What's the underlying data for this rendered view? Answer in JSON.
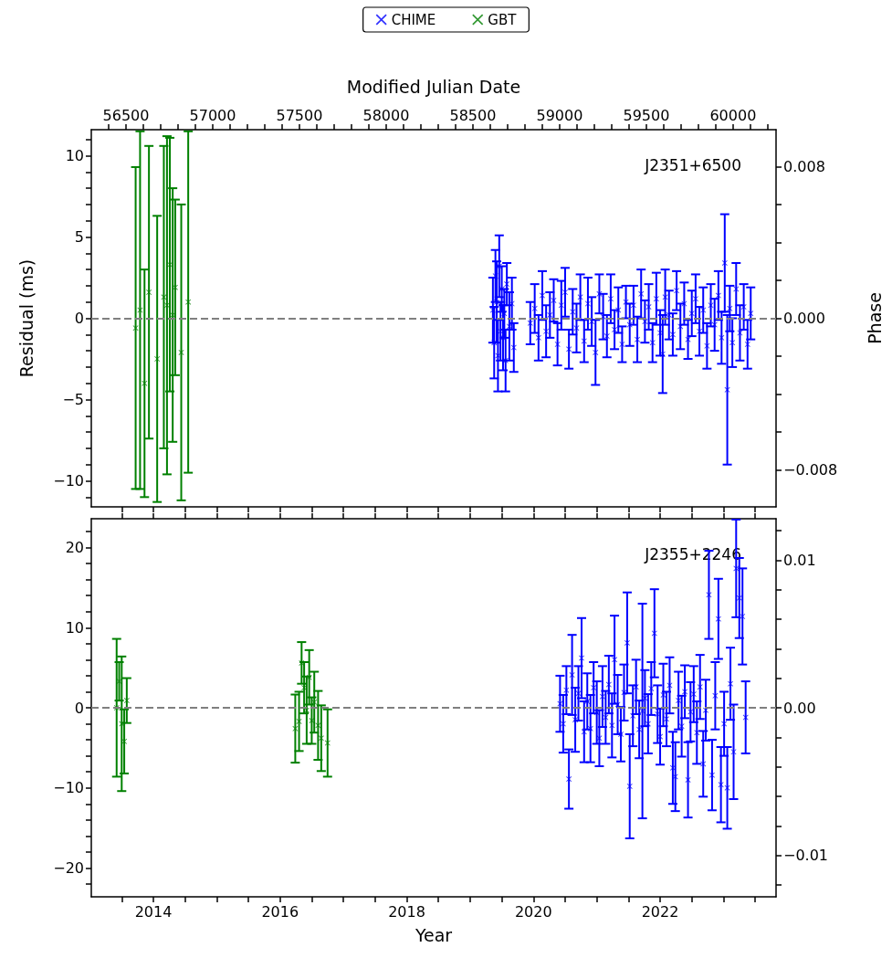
{
  "chart_data": [
    {
      "type": "scatter",
      "x2label": "Modified Julian Date",
      "ylabel": "Residual (ms)",
      "y2label": "Phase",
      "annotations": [
        "J2351+6500"
      ],
      "legend": "top",
      "marker": "cross",
      "tick_labels": "y",
      "xlim": [
        2013.02,
        2023.83
      ],
      "xticks": [
        {
          "value": 2013.5,
          "label": null
        },
        {
          "value": 2014,
          "label": null
        },
        {
          "value": 2014.5,
          "label": null
        },
        {
          "value": 2015,
          "label": null
        },
        {
          "value": 2015.5,
          "label": null
        },
        {
          "value": 2016,
          "label": null
        },
        {
          "value": 2016.5,
          "label": null
        },
        {
          "value": 2017,
          "label": null
        },
        {
          "value": 2017.5,
          "label": null
        },
        {
          "value": 2018,
          "label": null
        },
        {
          "value": 2018.5,
          "label": null
        },
        {
          "value": 2019,
          "label": null
        },
        {
          "value": 2019.5,
          "label": null
        },
        {
          "value": 2020,
          "label": null
        },
        {
          "value": 2020.5,
          "label": null
        },
        {
          "value": 2021,
          "label": null
        },
        {
          "value": 2021.5,
          "label": null
        },
        {
          "value": 2022,
          "label": null
        },
        {
          "value": 2022.5,
          "label": null
        },
        {
          "value": 2023,
          "label": null
        },
        {
          "value": 2023.5,
          "label": null
        }
      ],
      "x2lim": [
        56300,
        60248
      ],
      "x2ticks": [
        {
          "value": 56400,
          "label": null
        },
        56500,
        {
          "value": 56600,
          "label": null
        },
        {
          "value": 56700,
          "label": null
        },
        {
          "value": 56800,
          "label": null
        },
        {
          "value": 56900,
          "label": null
        },
        57000,
        {
          "value": 57100,
          "label": null
        },
        {
          "value": 57200,
          "label": null
        },
        {
          "value": 57300,
          "label": null
        },
        {
          "value": 57400,
          "label": null
        },
        57500,
        {
          "value": 57600,
          "label": null
        },
        {
          "value": 57700,
          "label": null
        },
        {
          "value": 57800,
          "label": null
        },
        {
          "value": 57900,
          "label": null
        },
        58000,
        {
          "value": 58100,
          "label": null
        },
        {
          "value": 58200,
          "label": null
        },
        {
          "value": 58300,
          "label": null
        },
        {
          "value": 58400,
          "label": null
        },
        58500,
        {
          "value": 58600,
          "label": null
        },
        {
          "value": 58700,
          "label": null
        },
        {
          "value": 58800,
          "label": null
        },
        {
          "value": 58900,
          "label": null
        },
        59000,
        {
          "value": 59100,
          "label": null
        },
        {
          "value": 59200,
          "label": null
        },
        {
          "value": 59300,
          "label": null
        },
        {
          "value": 59400,
          "label": null
        },
        59500,
        {
          "value": 59600,
          "label": null
        },
        {
          "value": 59700,
          "label": null
        },
        {
          "value": 59800,
          "label": null
        },
        {
          "value": 59900,
          "label": null
        },
        60000,
        {
          "value": 60100,
          "label": null
        },
        {
          "value": 60200,
          "label": null
        }
      ],
      "ylim": [
        -11.6,
        11.6
      ],
      "yticks": [
        {
          "value": -11,
          "label": null
        },
        {
          "value": -10,
          "label": "−10"
        },
        {
          "value": -9,
          "label": null
        },
        {
          "value": -8,
          "label": null
        },
        {
          "value": -7,
          "label": null
        },
        {
          "value": -6,
          "label": null
        },
        {
          "value": -5,
          "label": "−5"
        },
        {
          "value": -4,
          "label": null
        },
        {
          "value": -3,
          "label": null
        },
        {
          "value": -2,
          "label": null
        },
        {
          "value": -1,
          "label": null
        },
        0,
        {
          "value": 1,
          "label": null
        },
        {
          "value": 2,
          "label": null
        },
        {
          "value": 3,
          "label": null
        },
        {
          "value": 4,
          "label": null
        },
        5,
        {
          "value": 6,
          "label": null
        },
        {
          "value": 7,
          "label": null
        },
        {
          "value": 8,
          "label": null
        },
        {
          "value": 9,
          "label": null
        },
        10,
        {
          "value": 11,
          "label": null
        }
      ],
      "y2lim": [
        -0.00995,
        0.00995
      ],
      "y2ticks": [
        {
          "value": -0.008,
          "label": "−0.008"
        },
        {
          "value": -0.006,
          "label": null
        },
        {
          "value": -0.004,
          "label": null
        },
        {
          "value": -0.002,
          "label": null
        },
        {
          "value": 0,
          "label": "0.000"
        },
        {
          "value": 0.002,
          "label": null
        },
        {
          "value": 0.004,
          "label": null
        },
        {
          "value": 0.006,
          "label": null
        },
        {
          "value": 0.008,
          "label": "0.008"
        }
      ],
      "ref_lines": [
        {
          "axis": "y",
          "value": 0,
          "color": "#808080",
          "line_style": "dashed"
        }
      ],
      "series": [
        {
          "name": "CHIME",
          "color": "#0000ff",
          "x": [
            2019.36,
            2019.38,
            2019.4,
            2019.42,
            2019.44,
            2019.46,
            2019.48,
            2019.5,
            2019.52,
            2019.54,
            2019.56,
            2019.58,
            2019.62,
            2019.66,
            2019.69,
            2019.95,
            2020.02,
            2020.08,
            2020.14,
            2020.2,
            2020.26,
            2020.32,
            2020.38,
            2020.44,
            2020.5,
            2020.56,
            2020.62,
            2020.68,
            2020.74,
            2020.8,
            2020.86,
            2020.92,
            2020.98,
            2021.04,
            2021.1,
            2021.16,
            2021.22,
            2021.28,
            2021.34,
            2021.4,
            2021.46,
            2021.52,
            2021.58,
            2021.64,
            2021.7,
            2021.76,
            2021.82,
            2021.88,
            2021.94,
            2022.0,
            2022.04,
            2022.08,
            2022.14,
            2022.2,
            2022.26,
            2022.32,
            2022.38,
            2022.44,
            2022.5,
            2022.56,
            2022.62,
            2022.68,
            2022.74,
            2022.8,
            2022.86,
            2022.92,
            2022.97,
            2023.02,
            2023.06,
            2023.1,
            2023.14,
            2023.2,
            2023.26,
            2023.32,
            2023.38,
            2023.43
          ],
          "values": [
            0.5,
            -1.5,
            2.6,
            1.0,
            -2.3,
            3.2,
            -0.8,
            1.8,
            -1.2,
            0.3,
            -2.6,
            2.1,
            -0.5,
            0.9,
            -1.8,
            -0.3,
            0.6,
            -1.2,
            1.4,
            -0.8,
            0.2,
            1.1,
            -1.6,
            0.8,
            1.6,
            -1.9,
            0.4,
            -0.6,
            1.3,
            -1.4,
            0.9,
            -0.2,
            -2.1,
            1.5,
            0.1,
            -1.1,
            1.2,
            -0.7,
            0.5,
            -1.6,
            1.0,
            -0.4,
            0.8,
            -1.3,
            1.5,
            -0.2,
            0.7,
            -1.5,
            1.2,
            -0.9,
            -2.2,
            1.3,
            0.2,
            -1.0,
            1.7,
            -0.5,
            0.9,
            -1.3,
            0.3,
            1.2,
            -0.8,
            0.5,
            -1.7,
            0.8,
            -0.4,
            1.4,
            -1.2,
            3.4,
            -4.4,
            0.6,
            -1.5,
            1.8,
            -0.9,
            0.7,
            -1.6,
            0.3
          ],
          "errors": [
            2.0,
            2.2,
            1.6,
            2.5,
            2.2,
            1.9,
            1.8,
            1.4,
            2.0,
            1.5,
            1.9,
            1.3,
            2.1,
            1.6,
            1.5,
            1.3,
            1.5,
            1.4,
            1.5,
            1.6,
            1.4,
            1.3,
            1.3,
            1.5,
            1.5,
            1.2,
            1.4,
            1.5,
            1.4,
            1.3,
            1.6,
            1.5,
            2.0,
            1.2,
            1.4,
            1.3,
            1.5,
            1.2,
            1.4,
            1.1,
            1.0,
            1.3,
            1.2,
            1.4,
            1.5,
            1.3,
            1.4,
            1.2,
            1.6,
            1.4,
            2.4,
            1.7,
            1.5,
            1.3,
            1.2,
            1.4,
            1.3,
            1.2,
            1.4,
            1.5,
            1.5,
            1.4,
            1.4,
            1.3,
            1.6,
            1.5,
            1.6,
            3.0,
            4.6,
            1.4,
            1.5,
            1.6,
            1.7,
            1.4,
            1.5,
            1.6
          ]
        },
        {
          "name": "GBT",
          "color": "#008000",
          "x": [
            2013.72,
            2013.79,
            2013.86,
            2013.93,
            2014.06,
            2014.165,
            2014.215,
            2014.26,
            2014.305,
            2014.345,
            2014.44,
            2014.55
          ],
          "values": [
            -0.6,
            0.5,
            -4.0,
            1.6,
            -2.5,
            1.3,
            0.8,
            3.3,
            0.2,
            1.9,
            -2.1,
            1.0
          ],
          "errors": [
            9.9,
            11.0,
            7.0,
            9.0,
            8.8,
            9.3,
            10.4,
            7.8,
            7.8,
            5.4,
            9.1,
            10.5
          ]
        }
      ]
    },
    {
      "type": "scatter",
      "xlabel": "Year",
      "annotations": [
        "J2355+2246"
      ],
      "marker": "cross",
      "xlim": [
        2013.02,
        2023.83
      ],
      "xticks": [
        {
          "value": 2013.5,
          "label": null
        },
        2014,
        {
          "value": 2014.5,
          "label": null
        },
        {
          "value": 2015,
          "label": null
        },
        {
          "value": 2015.5,
          "label": null
        },
        2016,
        {
          "value": 2016.5,
          "label": null
        },
        {
          "value": 2017,
          "label": null
        },
        {
          "value": 2017.5,
          "label": null
        },
        2018,
        {
          "value": 2018.5,
          "label": null
        },
        {
          "value": 2019,
          "label": null
        },
        {
          "value": 2019.5,
          "label": null
        },
        2020,
        {
          "value": 2020.5,
          "label": null
        },
        {
          "value": 2021,
          "label": null
        },
        {
          "value": 2021.5,
          "label": null
        },
        2022,
        {
          "value": 2022.5,
          "label": null
        },
        {
          "value": 2023,
          "label": null
        },
        {
          "value": 2023.5,
          "label": null
        }
      ],
      "ylim": [
        -23.6,
        23.6
      ],
      "yticks": [
        {
          "value": -22,
          "label": null
        },
        {
          "value": -20,
          "label": "−20"
        },
        {
          "value": -18,
          "label": null
        },
        {
          "value": -16,
          "label": null
        },
        {
          "value": -14,
          "label": null
        },
        {
          "value": -12,
          "label": null
        },
        {
          "value": -10,
          "label": "−10"
        },
        {
          "value": -8,
          "label": null
        },
        {
          "value": -6,
          "label": null
        },
        {
          "value": -4,
          "label": null
        },
        {
          "value": -2,
          "label": null
        },
        0,
        {
          "value": 2,
          "label": null
        },
        {
          "value": 4,
          "label": null
        },
        {
          "value": 6,
          "label": null
        },
        {
          "value": 8,
          "label": null
        },
        10,
        {
          "value": 12,
          "label": null
        },
        {
          "value": 14,
          "label": null
        },
        {
          "value": 16,
          "label": null
        },
        {
          "value": 18,
          "label": null
        },
        20,
        {
          "value": 22,
          "label": null
        }
      ],
      "y2lim": [
        -0.0128,
        0.0128
      ],
      "y2ticks": [
        {
          "value": -0.012,
          "label": null
        },
        {
          "value": -0.01,
          "label": "−0.01"
        },
        {
          "value": -0.008,
          "label": null
        },
        {
          "value": -0.006,
          "label": null
        },
        {
          "value": -0.004,
          "label": null
        },
        {
          "value": -0.002,
          "label": null
        },
        {
          "value": 0,
          "label": "0.00"
        },
        {
          "value": 0.002,
          "label": null
        },
        {
          "value": 0.004,
          "label": null
        },
        {
          "value": 0.006,
          "label": null
        },
        {
          "value": 0.008,
          "label": null
        },
        {
          "value": 0.01,
          "label": "0.01"
        },
        {
          "value": 0.012,
          "label": null
        }
      ],
      "ref_lines": [
        {
          "axis": "y",
          "value": 0,
          "color": "#808080",
          "line_style": "dashed"
        }
      ],
      "series": [
        {
          "color": "#0000ff",
          "x": [
            2020.42,
            2020.47,
            2020.52,
            2020.56,
            2020.61,
            2020.66,
            2020.71,
            2020.76,
            2020.8,
            2020.85,
            2020.9,
            2020.95,
            2021.0,
            2021.04,
            2021.09,
            2021.14,
            2021.19,
            2021.24,
            2021.28,
            2021.33,
            2021.38,
            2021.43,
            2021.48,
            2021.52,
            2021.57,
            2021.62,
            2021.67,
            2021.72,
            2021.76,
            2021.81,
            2021.86,
            2021.91,
            2021.96,
            2022.0,
            2022.05,
            2022.1,
            2022.15,
            2022.2,
            2022.24,
            2022.29,
            2022.34,
            2022.39,
            2022.44,
            2022.48,
            2022.53,
            2022.58,
            2022.63,
            2022.68,
            2022.72,
            2022.77,
            2022.82,
            2022.87,
            2022.92,
            2022.96,
            2023.01,
            2023.06,
            2023.11,
            2023.16,
            2023.2,
            2023.25,
            2023.3,
            2023.35
          ],
          "values": [
            0.5,
            -2.0,
            2.2,
            -8.9,
            4.1,
            -1.5,
            1.8,
            6.2,
            -3.0,
            0.8,
            -2.6,
            2.5,
            -0.6,
            -3.8,
            1.4,
            -1.2,
            2.9,
            -2.2,
            6.0,
            0.4,
            -3.3,
            1.9,
            8.1,
            -9.8,
            -1.0,
            2.6,
            -2.7,
            -0.4,
            1.2,
            -2.0,
            2.4,
            9.3,
            -0.8,
            -3.6,
            1.6,
            -1.4,
            2.8,
            -7.5,
            -8.6,
            0.9,
            -2.3,
            2.0,
            -9.0,
            -0.5,
            1.7,
            -3.1,
            2.6,
            -7.0,
            -0.3,
            14.1,
            -8.4,
            1.5,
            11.1,
            -9.6,
            -2.0,
            -10.0,
            3.0,
            -5.5,
            17.4,
            13.7,
            11.4,
            -1.2
          ],
          "errors": [
            3.5,
            3.6,
            3.0,
            3.7,
            5.0,
            4.0,
            3.4,
            5.0,
            3.8,
            3.5,
            4.2,
            3.2,
            3.9,
            3.5,
            3.8,
            3.3,
            3.6,
            4.0,
            5.5,
            3.7,
            3.4,
            3.5,
            6.3,
            6.5,
            3.8,
            3.4,
            3.6,
            13.4,
            3.5,
            3.7,
            3.3,
            5.5,
            3.6,
            3.5,
            3.9,
            3.4,
            3.5,
            4.5,
            4.3,
            3.6,
            3.8,
            3.3,
            4.7,
            3.7,
            3.5,
            3.9,
            4.0,
            4.1,
            3.8,
            5.5,
            4.4,
            4.2,
            5.0,
            4.7,
            4.0,
            5.1,
            4.5,
            5.9,
            6.1,
            5.0,
            6.0,
            4.5
          ]
        },
        {
          "color": "#008000",
          "x": [
            2013.42,
            2013.46,
            2013.5,
            2013.54,
            2013.58,
            2016.24,
            2016.3,
            2016.34,
            2016.38,
            2016.42,
            2016.46,
            2016.5,
            2016.54,
            2016.6,
            2016.65,
            2016.75
          ],
          "values": [
            0.0,
            3.3,
            -2.0,
            -4.2,
            0.9,
            -2.6,
            -1.7,
            5.6,
            2.5,
            -0.3,
            3.8,
            -1.6,
            0.7,
            -2.2,
            -3.8,
            -4.4
          ],
          "errors": [
            8.6,
            2.4,
            8.4,
            4.0,
            2.8,
            4.25,
            3.7,
            2.6,
            3.2,
            4.2,
            3.4,
            2.9,
            3.8,
            4.3,
            4.1,
            4.2
          ]
        }
      ]
    }
  ]
}
